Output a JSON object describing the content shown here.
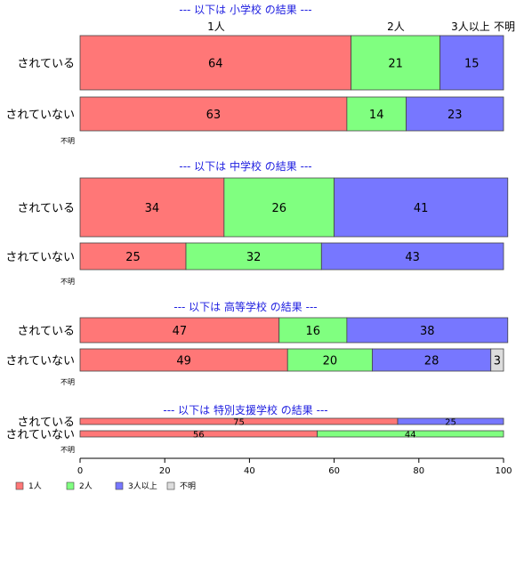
{
  "chart_data": {
    "type": "bar",
    "orientation": "horizontal",
    "stacked": true,
    "xlim": [
      0,
      100
    ],
    "x_ticks": [
      "0",
      "20",
      "40",
      "60",
      "80",
      "100"
    ],
    "top_column_labels": [
      "1人",
      "2人",
      "3人以上",
      "不明"
    ],
    "legend_position": "bottom-left",
    "series_names": [
      "1人",
      "2人",
      "3人以上",
      "不明"
    ],
    "colors": [
      "#ff7777",
      "#80ff80",
      "#7777ff",
      "#dddddd"
    ],
    "panels": [
      {
        "title": "--- 以下は 小学校 の結果 ---",
        "rows": [
          {
            "label": "されている",
            "values": [
              64,
              21,
              15,
              0
            ]
          },
          {
            "label": "されていない",
            "values": [
              63,
              14,
              23,
              0
            ]
          }
        ],
        "unknown_label": "不明"
      },
      {
        "title": "--- 以下は 中学校 の結果 ---",
        "rows": [
          {
            "label": "されている",
            "values": [
              34,
              26,
              41,
              0
            ]
          },
          {
            "label": "されていない",
            "values": [
              25,
              32,
              43,
              0
            ]
          }
        ],
        "unknown_label": "不明"
      },
      {
        "title": "--- 以下は 高等学校 の結果 ---",
        "rows": [
          {
            "label": "されている",
            "values": [
              47,
              16,
              38,
              0
            ]
          },
          {
            "label": "されていない",
            "values": [
              49,
              20,
              28,
              3
            ]
          }
        ],
        "unknown_label": "不明"
      },
      {
        "title": "--- 以下は 特別支援学校 の結果 ---",
        "rows": [
          {
            "label": "されている",
            "values": [
              75,
              0,
              25,
              0
            ]
          },
          {
            "label": "されていない",
            "values": [
              56,
              44,
              0,
              0
            ]
          }
        ],
        "unknown_label": "不明"
      }
    ]
  }
}
